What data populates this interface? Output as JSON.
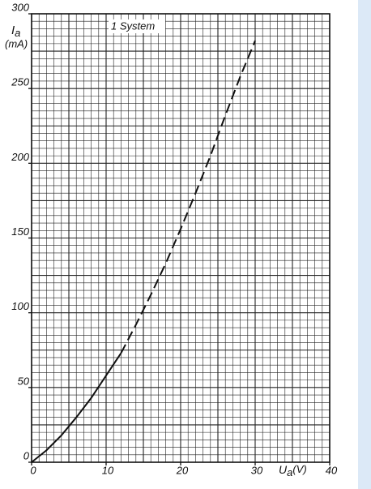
{
  "chart_data": {
    "type": "line",
    "annotation": "1 System",
    "ylabel": {
      "symbol": "I",
      "subscript": "a",
      "unit": "(mA)"
    },
    "xlabel": {
      "symbol": "U",
      "subscript": "a",
      "unit": "(V)"
    },
    "x": [
      0,
      2,
      4,
      6,
      8,
      10,
      12,
      14,
      16,
      18,
      20,
      22,
      24,
      26,
      28,
      30
    ],
    "series": [
      {
        "color": "#111",
        "style": "solid",
        "values": [
          0,
          8,
          18,
          30,
          43,
          58,
          73,
          null,
          null,
          null,
          null,
          null,
          null,
          null,
          null,
          null
        ]
      },
      {
        "color": "#111",
        "style": "dashed",
        "values": [
          null,
          null,
          null,
          null,
          null,
          null,
          73,
          92,
          112,
          133,
          156,
          180,
          205,
          232,
          258,
          282
        ]
      }
    ],
    "xlim": [
      0,
      40
    ],
    "xticks": [
      0,
      10,
      20,
      30,
      40
    ],
    "ylim": [
      0,
      300
    ],
    "yticks": [
      0,
      50,
      100,
      150,
      200,
      250,
      300
    ],
    "grid": true
  }
}
